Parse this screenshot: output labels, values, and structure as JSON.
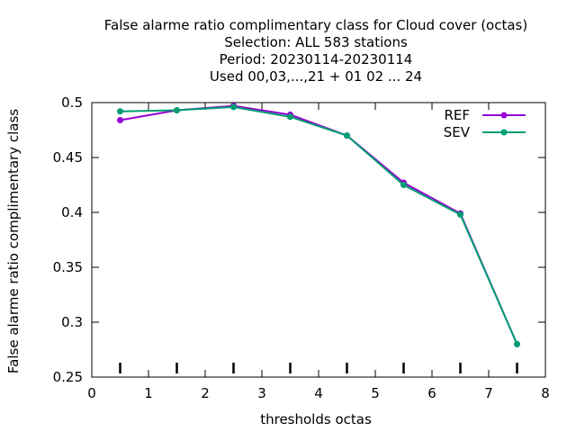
{
  "chart_data": {
    "type": "line",
    "title_lines": [
      "False alarme ratio complimentary class  for Cloud cover (octas)",
      "Selection: ALL     583 stations",
      "Period: 20230114-20230114",
      "Used  00,03,...,21  + 01 02 ... 24"
    ],
    "xlabel": "thresholds octas",
    "ylabel": "False alarme ratio complimentary class",
    "xlim": [
      0,
      8
    ],
    "ylim": [
      0.25,
      0.5
    ],
    "xticks": [
      0,
      1,
      2,
      3,
      4,
      5,
      6,
      7,
      8
    ],
    "yticks": [
      0.25,
      0.3,
      0.35,
      0.4,
      0.45,
      0.5
    ],
    "x": [
      0.5,
      1.5,
      2.5,
      3.5,
      4.5,
      5.5,
      6.5,
      7.5
    ],
    "series": [
      {
        "name": "REF",
        "color": "#9400d3",
        "values": [
          0.484,
          0.493,
          0.497,
          0.489,
          0.47,
          0.427,
          0.399,
          0.28
        ]
      },
      {
        "name": "SEV",
        "color": "#009e73",
        "values": [
          0.492,
          0.493,
          0.496,
          0.487,
          0.47,
          0.425,
          0.398,
          0.28
        ]
      }
    ],
    "legend_position": "top-right",
    "grid": false
  }
}
